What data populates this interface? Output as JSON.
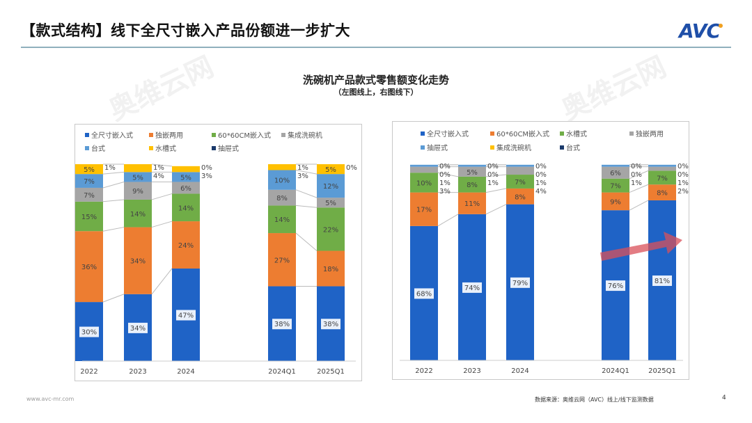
{
  "header": {
    "title": "【款式结构】线下全尺寸嵌入产品份额进一步扩大",
    "logo": "AVC"
  },
  "figure": {
    "title": "洗碗机产品款式零售额变化走势",
    "subtitle": "（左图线上，右图线下）"
  },
  "footer": {
    "website": "www.avc-mr.com",
    "source": "数据来源：奥维云网（AVC）线上/线下监测数据",
    "page": "4"
  },
  "watermark": "奥维云网",
  "chart_data": [
    {
      "type": "bar",
      "stacked": true,
      "percent": true,
      "legend_position": "top",
      "categories": [
        "2022",
        "2023",
        "2024",
        "2024Q1",
        "2025Q1"
      ],
      "series": [
        {
          "name": "全尺寸嵌入式",
          "color": "#1f63c6",
          "values": [
            30,
            34,
            47,
            38,
            38
          ]
        },
        {
          "name": "独嵌两用",
          "color": "#ed7d31",
          "values": [
            36,
            34,
            24,
            27,
            18
          ]
        },
        {
          "name": "60*60CM嵌入式",
          "color": "#70ad47",
          "values": [
            15,
            14,
            14,
            14,
            22
          ]
        },
        {
          "name": "集成洗碗机",
          "color": "#a5a5a5",
          "values": [
            7,
            9,
            6,
            8,
            5
          ]
        },
        {
          "name": "台式",
          "color": "#5b9bd5",
          "values": [
            7,
            5,
            5,
            10,
            12
          ]
        },
        {
          "name": "水槽式",
          "color": "#ffc000",
          "values": [
            5,
            4,
            3,
            3,
            5
          ]
        },
        {
          "name": "抽屉式",
          "color": "#1b3a6b",
          "values": [
            1,
            1,
            0,
            1,
            0
          ]
        }
      ]
    },
    {
      "type": "bar",
      "stacked": true,
      "percent": true,
      "legend_position": "top",
      "categories": [
        "2022",
        "2023",
        "2024",
        "2024Q1",
        "2025Q1"
      ],
      "series": [
        {
          "name": "全尺寸嵌入式",
          "color": "#1f63c6",
          "values": [
            68,
            74,
            79,
            76,
            81
          ]
        },
        {
          "name": "60*60CM嵌入式",
          "color": "#ed7d31",
          "values": [
            17,
            11,
            8,
            9,
            8
          ]
        },
        {
          "name": "水槽式",
          "color": "#70ad47",
          "values": [
            10,
            8,
            7,
            7,
            7
          ]
        },
        {
          "name": "独嵌两用",
          "color": "#a5a5a5",
          "values": [
            3,
            5,
            4,
            6,
            2
          ]
        },
        {
          "name": "抽屉式",
          "color": "#5b9bd5",
          "values": [
            1,
            1,
            1,
            1,
            1
          ]
        },
        {
          "name": "集成洗碗机",
          "color": "#ffc000",
          "values": [
            0,
            0,
            0,
            0,
            0
          ]
        },
        {
          "name": "台式",
          "color": "#1b3a6b",
          "values": [
            0,
            0,
            0,
            0,
            0
          ]
        }
      ]
    }
  ]
}
